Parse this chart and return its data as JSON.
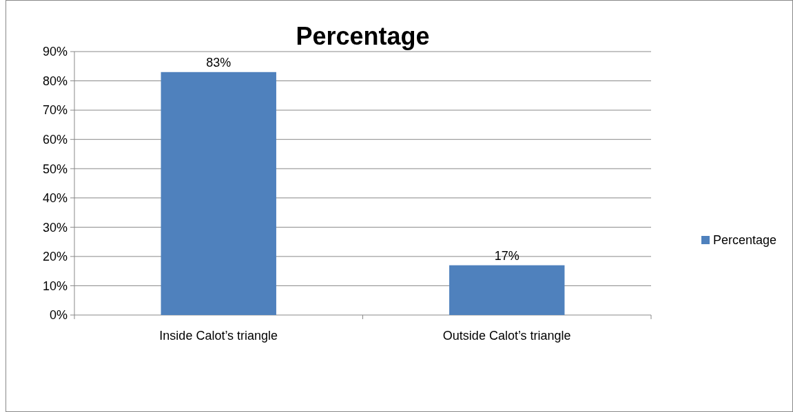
{
  "chart_data": {
    "type": "bar",
    "title": "Percentage",
    "categories": [
      "Inside Calot’s triangle",
      "Outside Calot’s triangle"
    ],
    "series": [
      {
        "name": "Percentage",
        "color": "#4f81bd",
        "values": [
          83,
          17
        ],
        "value_labels": [
          "83%",
          "17%"
        ]
      }
    ],
    "ylim": [
      0,
      90
    ],
    "yticks": [
      {
        "value": 0,
        "label": "0%"
      },
      {
        "value": 10,
        "label": "10%"
      },
      {
        "value": 20,
        "label": "20%"
      },
      {
        "value": 30,
        "label": "30%"
      },
      {
        "value": 40,
        "label": "40%"
      },
      {
        "value": 50,
        "label": "50%"
      },
      {
        "value": 60,
        "label": "60%"
      },
      {
        "value": 70,
        "label": "70%"
      },
      {
        "value": 80,
        "label": "80%"
      },
      {
        "value": 90,
        "label": "90%"
      }
    ],
    "grid": "y",
    "legend": "right"
  }
}
